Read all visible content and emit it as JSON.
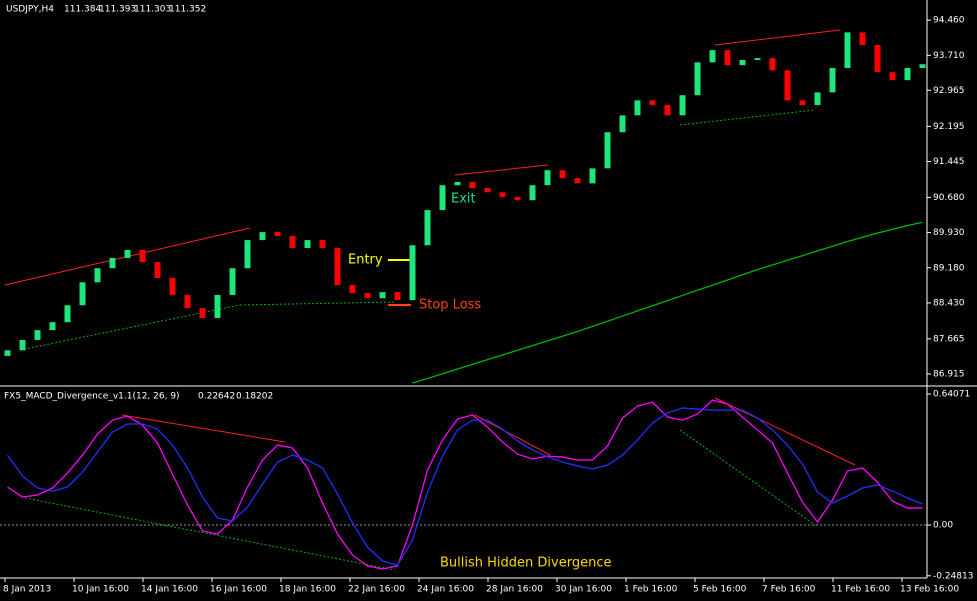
{
  "chart_data": [
    {
      "type": "candlestick",
      "title": "USDJPY,H4",
      "quote": [
        111.384,
        111.393,
        111.303,
        111.352
      ],
      "bull_color": "#1ee67a",
      "bear_color": "#ff0000",
      "ma_color": "#00b400",
      "open": [
        87.3,
        87.42,
        87.64,
        87.85,
        88.02,
        88.38,
        88.87,
        89.17,
        89.39,
        89.56,
        89.3,
        88.96,
        88.6,
        88.32,
        88.11,
        88.6,
        89.17,
        89.77,
        89.94,
        89.86,
        89.6,
        89.77,
        89.6,
        88.81,
        88.64,
        88.53,
        88.66,
        88.49,
        89.66,
        90.41,
        90.94,
        91.01,
        90.88,
        90.79,
        90.69,
        90.62,
        90.94,
        91.26,
        91.09,
        90.98,
        91.3,
        92.07,
        92.43,
        92.75,
        92.65,
        92.43,
        92.86,
        93.56,
        93.82,
        93.5,
        93.61,
        93.65,
        93.39,
        92.75,
        92.65,
        92.92,
        93.44,
        94.2,
        93.93,
        93.35,
        93.18,
        93.44
      ],
      "close": [
        87.42,
        87.64,
        87.85,
        88.02,
        88.38,
        88.87,
        89.17,
        89.39,
        89.56,
        89.3,
        88.96,
        88.6,
        88.32,
        88.11,
        88.6,
        89.17,
        89.77,
        89.94,
        89.86,
        89.6,
        89.77,
        89.6,
        88.81,
        88.64,
        88.53,
        88.66,
        88.49,
        89.66,
        90.41,
        90.94,
        91.01,
        90.88,
        90.79,
        90.69,
        90.62,
        90.94,
        91.26,
        91.09,
        90.98,
        91.3,
        92.07,
        92.43,
        92.75,
        92.65,
        92.43,
        92.86,
        93.56,
        93.82,
        93.5,
        93.61,
        93.65,
        93.39,
        92.75,
        92.65,
        92.92,
        93.44,
        94.2,
        93.93,
        93.35,
        93.18,
        93.44,
        93.52
      ],
      "ma": [
        null,
        null,
        null,
        null,
        null,
        null,
        null,
        null,
        null,
        null,
        null,
        null,
        null,
        null,
        null,
        null,
        null,
        null,
        null,
        null,
        null,
        null,
        null,
        null,
        null,
        null,
        null,
        86.72,
        86.82,
        86.92,
        87.02,
        87.12,
        87.22,
        87.32,
        87.42,
        87.52,
        87.62,
        87.72,
        87.82,
        87.93,
        88.04,
        88.15,
        88.26,
        88.37,
        88.48,
        88.59,
        88.7,
        88.81,
        88.92,
        89.03,
        89.14,
        89.24,
        89.34,
        89.44,
        89.54,
        89.64,
        89.74,
        89.83,
        89.92,
        90.0,
        90.08,
        90.15
      ],
      "ylim": [
        86.68,
        94.89
      ],
      "yticks": [
        {
          "value": 94.46,
          "label": "94.460"
        },
        {
          "value": 93.71,
          "label": "93.710"
        },
        92.965,
        92.195,
        91.445,
        {
          "value": 90.68,
          "label": "90.680"
        },
        {
          "value": 89.93,
          "label": "89.930"
        },
        {
          "value": 89.18,
          "label": "89.180"
        },
        {
          "value": 88.43,
          "label": "88.430"
        },
        87.665,
        86.915
      ],
      "annotations": [
        "Entry",
        "Stop Loss",
        "Exit"
      ]
    },
    {
      "type": "line",
      "title": "FX5_MACD_Divergence_v1.1(12, 26, 9)",
      "quote": [
        0.22642,
        0.18202
      ],
      "series": [
        {
          "color": "#ff00ff",
          "values": [
            0.186,
            0.137,
            0.147,
            0.181,
            0.254,
            0.342,
            0.445,
            0.513,
            0.533,
            0.489,
            0.401,
            0.249,
            0.098,
            -0.029,
            -0.044,
            0.024,
            0.186,
            0.318,
            0.391,
            0.377,
            0.279,
            0.108,
            -0.044,
            -0.147,
            -0.2,
            -0.215,
            -0.2,
            0.0,
            0.269,
            0.416,
            0.518,
            0.538,
            0.479,
            0.406,
            0.347,
            0.323,
            0.337,
            0.333,
            0.318,
            0.318,
            0.386,
            0.523,
            0.582,
            0.601,
            0.528,
            0.513,
            0.543,
            0.611,
            0.592,
            0.528,
            0.465,
            0.401,
            0.254,
            0.112,
            0.015,
            0.122,
            0.264,
            0.279,
            0.21,
            0.117,
            0.083,
            0.083
          ]
        },
        {
          "color": "#2030ff",
          "values": [
            0.342,
            0.24,
            0.181,
            0.166,
            0.186,
            0.259,
            0.357,
            0.455,
            0.494,
            0.494,
            0.469,
            0.391,
            0.279,
            0.137,
            0.034,
            0.02,
            0.088,
            0.2,
            0.308,
            0.342,
            0.318,
            0.279,
            0.152,
            0.01,
            -0.108,
            -0.176,
            -0.196,
            -0.073,
            0.161,
            0.337,
            0.465,
            0.513,
            0.513,
            0.469,
            0.411,
            0.367,
            0.333,
            0.308,
            0.289,
            0.274,
            0.293,
            0.342,
            0.416,
            0.499,
            0.548,
            0.572,
            0.567,
            0.562,
            0.562,
            0.562,
            0.523,
            0.465,
            0.391,
            0.298,
            0.161,
            0.108,
            0.142,
            0.181,
            0.196,
            0.166,
            0.132,
            0.103
          ]
        }
      ],
      "ylim": [
        -0.259,
        0.675
      ],
      "yticks": [
        0.64071,
        {
          "value": 0,
          "label": "0.00"
        },
        -0.24813
      ],
      "annotations": [
        "Bullish Hidden Divergence"
      ],
      "x_labels": [
        "8 Jan 2013",
        "10 Jan 16:00",
        "14 Jan 16:00",
        "16 Jan 16:00",
        "18 Jan 16:00",
        "22 Jan 16:00",
        "24 Jan 16:00",
        "28 Jan 16:00",
        "30 Jan 16:00",
        "1 Feb 16:00",
        "5 Feb 16:00",
        "7 Feb 16:00",
        "11 Feb 16:00",
        "13 Feb 16:00"
      ]
    }
  ]
}
